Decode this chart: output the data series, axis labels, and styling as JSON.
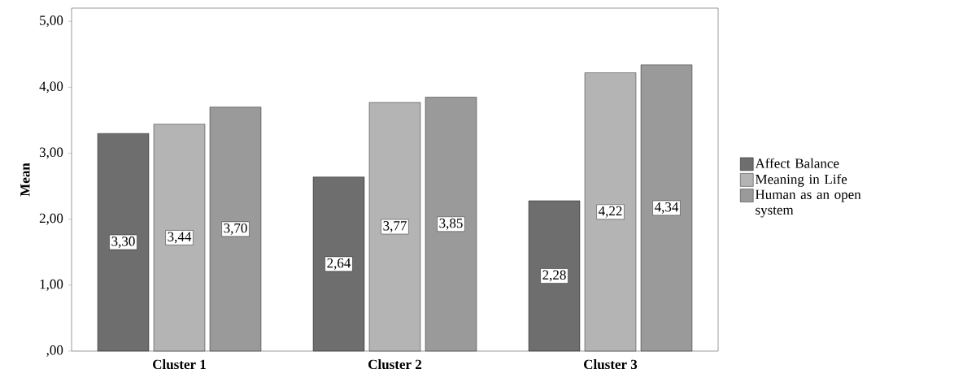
{
  "chart_data": {
    "type": "bar",
    "ylabel": "Mean",
    "categories": [
      "Cluster 1",
      "Cluster 2",
      "Cluster 3"
    ],
    "series": [
      {
        "name": "Affect Balance",
        "color": "#6e6e6e",
        "values": [
          3.3,
          2.64,
          2.28
        ],
        "value_labels": [
          "3,30",
          "2,64",
          "2,28"
        ]
      },
      {
        "name": "Meaning in Life",
        "color": "#b4b4b4",
        "values": [
          3.44,
          3.77,
          4.22
        ],
        "value_labels": [
          "3,44",
          "3,77",
          "4,22"
        ]
      },
      {
        "name": "Human as an open system",
        "color": "#9a9a9a",
        "values": [
          3.7,
          3.85,
          4.34
        ],
        "value_labels": [
          "3,70",
          "3,85",
          "4,34"
        ]
      }
    ],
    "ylim": [
      0,
      5.2
    ],
    "yticks": [
      {
        "value": 0,
        "label": ",00"
      },
      {
        "value": 1,
        "label": "1,00"
      },
      {
        "value": 2,
        "label": "2,00"
      },
      {
        "value": 3,
        "label": "3,00"
      },
      {
        "value": 4,
        "label": "4,00"
      },
      {
        "value": 5,
        "label": "5,00"
      }
    ],
    "grid": false,
    "legend": "right"
  }
}
